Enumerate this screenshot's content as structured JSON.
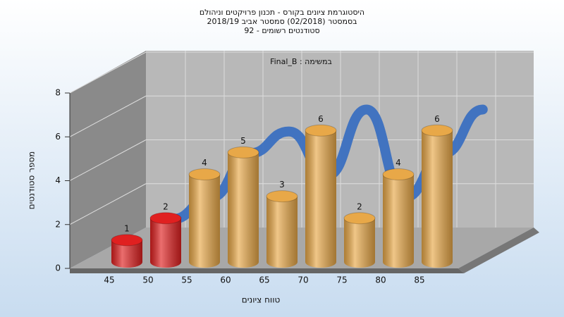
{
  "chart_data": {
    "type": "bar3d",
    "title_lines": [
      "היסטוגרמת ציונים בקורס - תכנון פרויקטים וניהולם",
      "בסמסטר  (02/2018)  סמסטר אביב 2018/19",
      "סטודנטים רשומים - 92"
    ],
    "annotation": "Final_B : במשימה",
    "x_label": "טווח ציונים",
    "y_label": "מספר סטודנטים",
    "categories": [
      "45",
      "50",
      "55",
      "60",
      "65",
      "70",
      "75",
      "80",
      "85"
    ],
    "values": [
      1,
      2,
      4,
      5,
      3,
      6,
      2,
      4,
      6
    ],
    "colors": [
      "#e02020",
      "#e02020",
      "#e8a848",
      "#e8a848",
      "#e8a848",
      "#e8a848",
      "#e8a848",
      "#e8a848",
      "#e8a848"
    ],
    "curve_color": "#3a6fc0",
    "ylim": [
      0,
      8
    ],
    "yticks": [
      0,
      2,
      4,
      6,
      8
    ],
    "grid": true
  }
}
